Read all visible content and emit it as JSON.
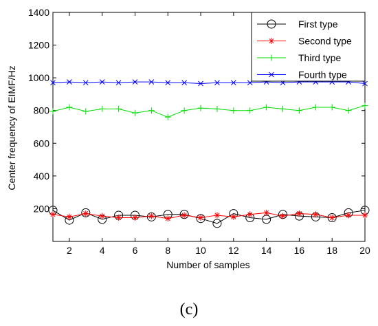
{
  "caption": "(c)",
  "chart_data": {
    "type": "line",
    "xlabel": "Number of samples",
    "ylabel": "Center frequency of EIMF/Hz",
    "xlim": [
      1,
      20
    ],
    "ylim": [
      0,
      1400
    ],
    "xticks": [
      2,
      4,
      6,
      8,
      10,
      12,
      14,
      16,
      18,
      20
    ],
    "yticks": [
      200,
      400,
      600,
      800,
      1000,
      1200,
      1400
    ],
    "grid": false,
    "legend_position": "top-right",
    "x": [
      1,
      2,
      3,
      4,
      5,
      6,
      7,
      8,
      9,
      10,
      11,
      12,
      13,
      14,
      15,
      16,
      17,
      18,
      19,
      20
    ],
    "series": [
      {
        "name": "First type",
        "color": "#000000",
        "marker": "circle",
        "values": [
          190,
          130,
          175,
          135,
          160,
          160,
          150,
          165,
          165,
          140,
          110,
          170,
          145,
          135,
          165,
          155,
          150,
          145,
          175,
          190
        ]
      },
      {
        "name": "Second type",
        "color": "#ff0000",
        "marker": "star",
        "values": [
          165,
          150,
          170,
          155,
          145,
          145,
          155,
          140,
          160,
          145,
          160,
          150,
          165,
          175,
          155,
          170,
          165,
          145,
          160,
          160
        ]
      },
      {
        "name": "Third type",
        "color": "#00dd00",
        "marker": "plus",
        "values": [
          795,
          820,
          795,
          810,
          810,
          785,
          800,
          760,
          800,
          815,
          810,
          800,
          800,
          820,
          810,
          800,
          820,
          820,
          800,
          830
        ]
      },
      {
        "name": "Fourth type",
        "color": "#0000ff",
        "marker": "x",
        "values": [
          970,
          975,
          970,
          975,
          970,
          975,
          975,
          970,
          970,
          965,
          970,
          970,
          970,
          975,
          970,
          975,
          975,
          975,
          975,
          965
        ]
      }
    ]
  }
}
